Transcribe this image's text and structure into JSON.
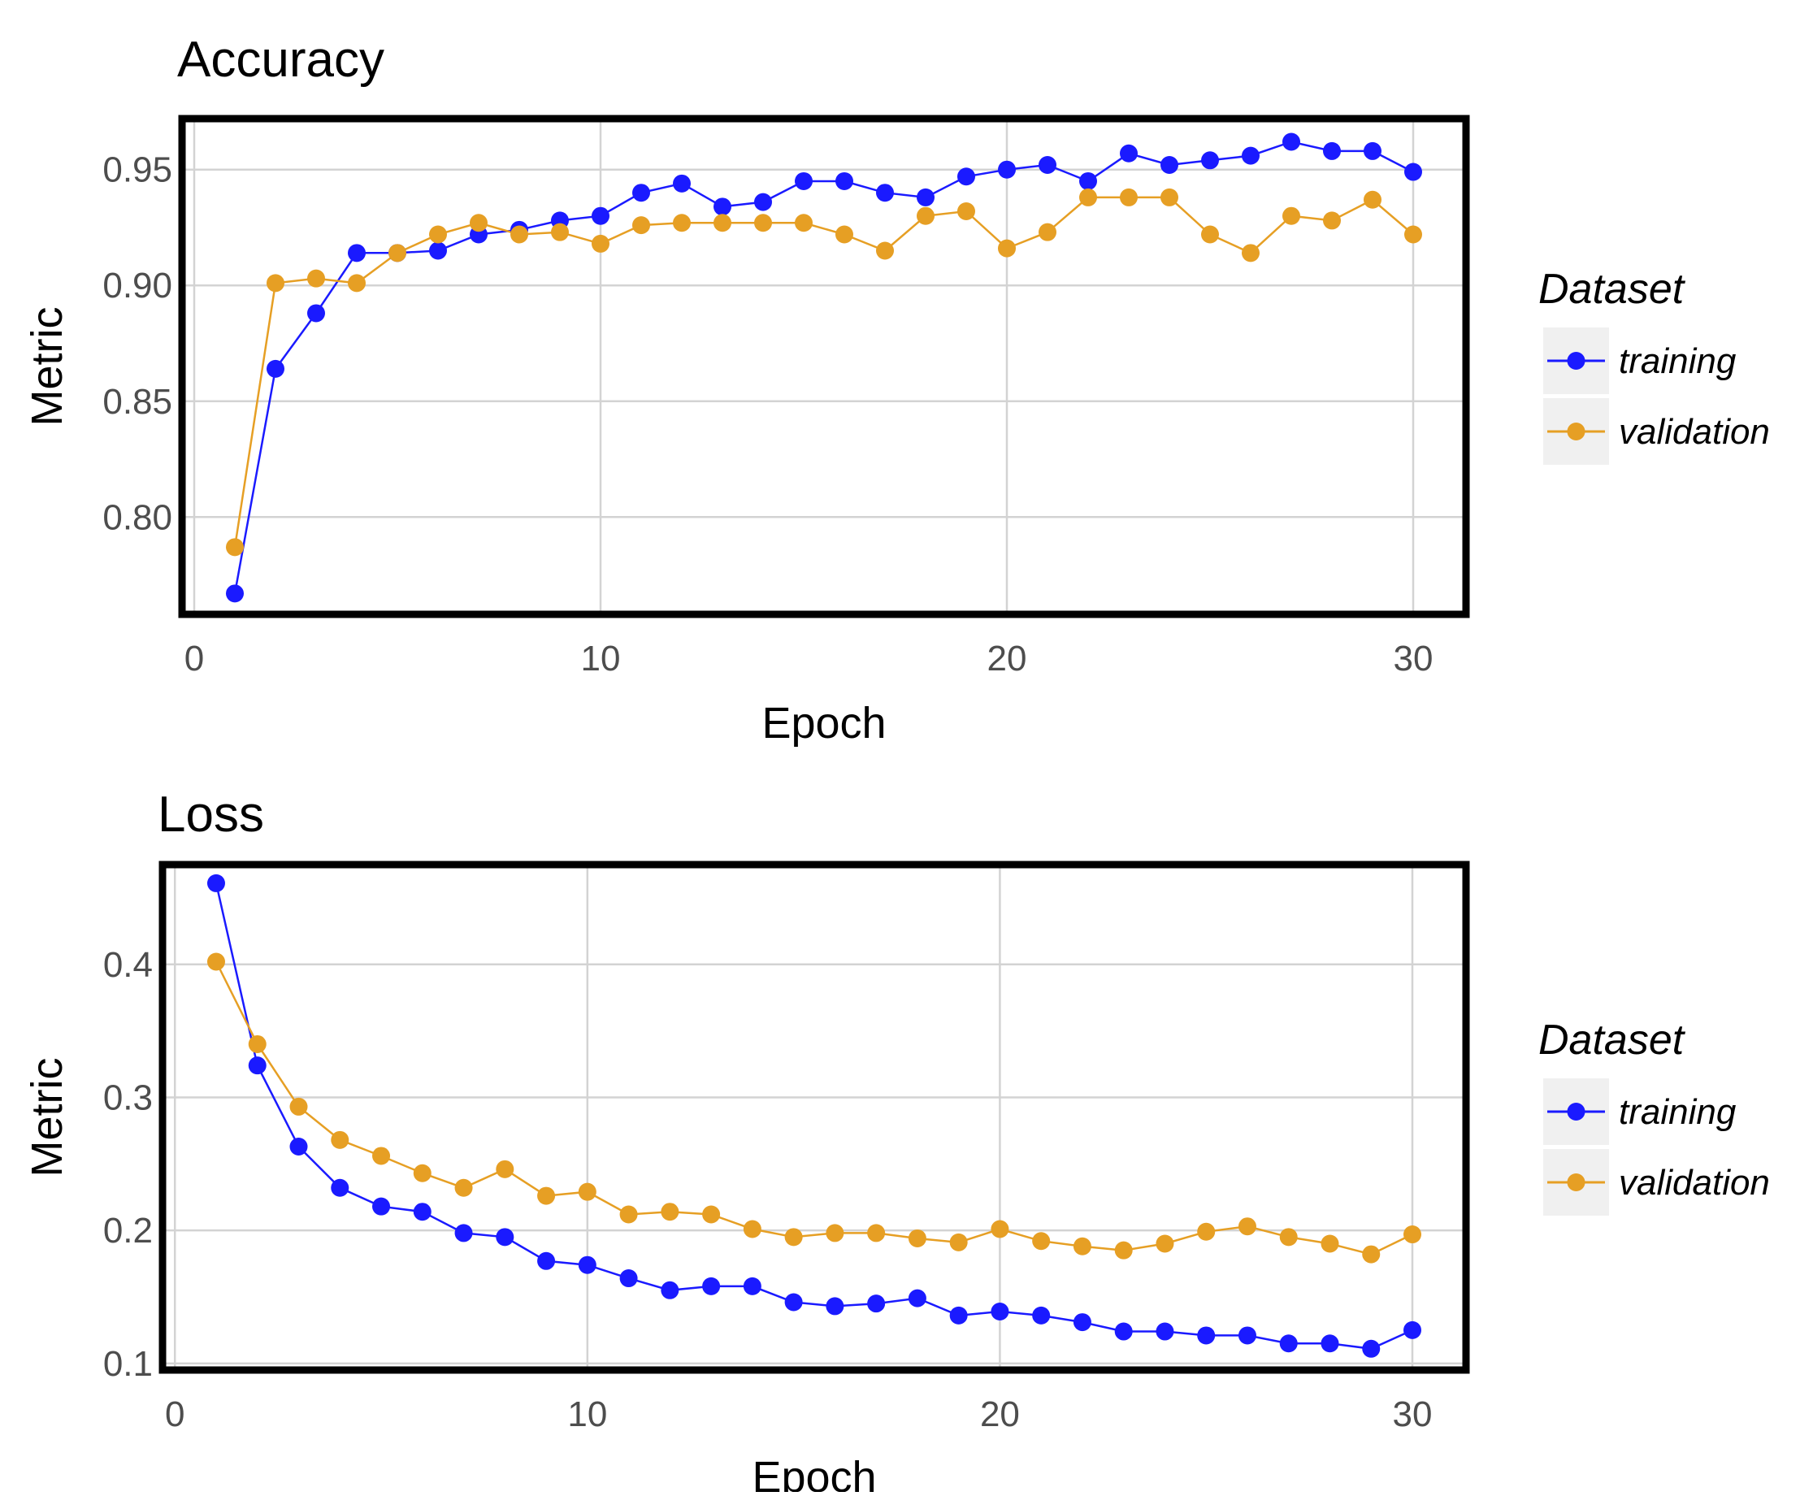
{
  "chart_data": [
    {
      "type": "line",
      "title": "Accuracy",
      "xlabel": "Epoch",
      "ylabel": "Metric",
      "xlim": [
        -0.3,
        31.3
      ],
      "ylim": [
        0.758,
        0.972
      ],
      "xticks": [
        0,
        10,
        20,
        30
      ],
      "yticks": [
        0.8,
        0.85,
        0.9,
        0.95
      ],
      "ytick_labels": [
        "0.80",
        "0.85",
        "0.90",
        "0.95"
      ],
      "grid": true,
      "legend": {
        "title": "Dataset",
        "position": "right",
        "entries": [
          "training",
          "validation"
        ]
      },
      "x": [
        1,
        2,
        3,
        4,
        5,
        6,
        7,
        8,
        9,
        10,
        11,
        12,
        13,
        14,
        15,
        16,
        17,
        18,
        19,
        20,
        21,
        22,
        23,
        24,
        25,
        26,
        27,
        28,
        29,
        30
      ],
      "series": [
        {
          "name": "training",
          "color": "#1a1aff",
          "values": [
            0.767,
            0.864,
            0.888,
            0.914,
            0.914,
            0.915,
            0.922,
            0.924,
            0.928,
            0.93,
            0.94,
            0.944,
            0.934,
            0.936,
            0.945,
            0.945,
            0.94,
            0.938,
            0.947,
            0.95,
            0.952,
            0.945,
            0.957,
            0.952,
            0.954,
            0.956,
            0.962,
            0.958,
            0.958,
            0.949
          ]
        },
        {
          "name": "validation",
          "color": "#e69f24",
          "values": [
            0.787,
            0.901,
            0.903,
            0.901,
            0.914,
            0.922,
            0.927,
            0.922,
            0.923,
            0.918,
            0.926,
            0.927,
            0.927,
            0.927,
            0.927,
            0.922,
            0.915,
            0.93,
            0.932,
            0.916,
            0.923,
            0.938,
            0.938,
            0.938,
            0.922,
            0.914,
            0.93,
            0.928,
            0.937,
            0.922
          ]
        }
      ]
    },
    {
      "type": "line",
      "title": "Loss",
      "xlabel": "Epoch",
      "ylabel": "Metric",
      "xlim": [
        -0.3,
        31.3
      ],
      "ylim": [
        0.095,
        0.475
      ],
      "xticks": [
        0,
        10,
        20,
        30
      ],
      "yticks": [
        0.1,
        0.2,
        0.3,
        0.4
      ],
      "ytick_labels": [
        "0.1",
        "0.2",
        "0.3",
        "0.4"
      ],
      "grid": true,
      "legend": {
        "title": "Dataset",
        "position": "right",
        "entries": [
          "training",
          "validation"
        ]
      },
      "x": [
        1,
        2,
        3,
        4,
        5,
        6,
        7,
        8,
        9,
        10,
        11,
        12,
        13,
        14,
        15,
        16,
        17,
        18,
        19,
        20,
        21,
        22,
        23,
        24,
        25,
        26,
        27,
        28,
        29,
        30
      ],
      "series": [
        {
          "name": "training",
          "color": "#1a1aff",
          "values": [
            0.461,
            0.324,
            0.263,
            0.232,
            0.218,
            0.214,
            0.198,
            0.195,
            0.177,
            0.174,
            0.164,
            0.155,
            0.158,
            0.158,
            0.146,
            0.143,
            0.145,
            0.149,
            0.136,
            0.139,
            0.136,
            0.131,
            0.124,
            0.124,
            0.121,
            0.121,
            0.115,
            0.115,
            0.111,
            0.125
          ]
        },
        {
          "name": "validation",
          "color": "#e69f24",
          "values": [
            0.402,
            0.34,
            0.293,
            0.268,
            0.256,
            0.243,
            0.232,
            0.246,
            0.226,
            0.229,
            0.212,
            0.214,
            0.212,
            0.201,
            0.195,
            0.198,
            0.198,
            0.194,
            0.191,
            0.201,
            0.192,
            0.188,
            0.185,
            0.19,
            0.199,
            0.203,
            0.195,
            0.19,
            0.182,
            0.197
          ]
        }
      ]
    }
  ]
}
